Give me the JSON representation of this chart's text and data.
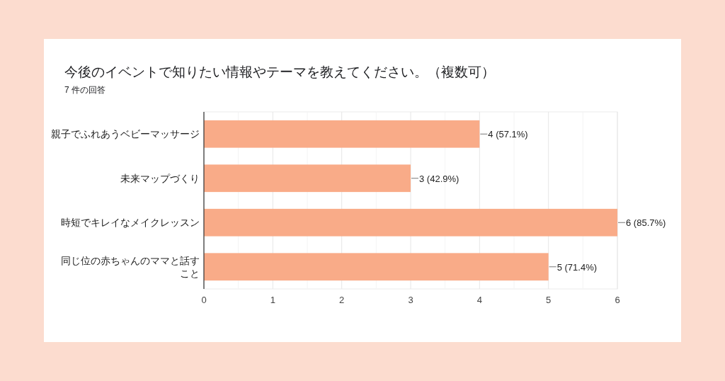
{
  "chart_data": {
    "type": "bar",
    "orientation": "horizontal",
    "title": "今後のイベントで知りたい情報やテーマを教えてください。（複数可）",
    "subtitle": "7 件の回答",
    "categories": [
      "親子でふれあうベビーマッサージ",
      "未来マップづくり",
      "時短でキレイなメイクレッスン",
      "同じ位の赤ちゃんのママと話すこと"
    ],
    "values": [
      4,
      3,
      6,
      5
    ],
    "color": "#f9ab88",
    "value_labels": [
      "4 (57.1%)",
      "3 (42.9%)",
      "6 (85.7%)",
      "5 (71.4%)"
    ],
    "xlim": [
      0,
      6
    ],
    "xticks": [
      0,
      {
        "value": 0.5,
        "label": null
      },
      1,
      {
        "value": 1.5,
        "label": null
      },
      2,
      {
        "value": 2.5,
        "label": null
      },
      3,
      {
        "value": 3.5,
        "label": null
      },
      4,
      {
        "value": 4.5,
        "label": null
      },
      5,
      {
        "value": 5.5,
        "label": null
      },
      6
    ],
    "grid": "x"
  }
}
